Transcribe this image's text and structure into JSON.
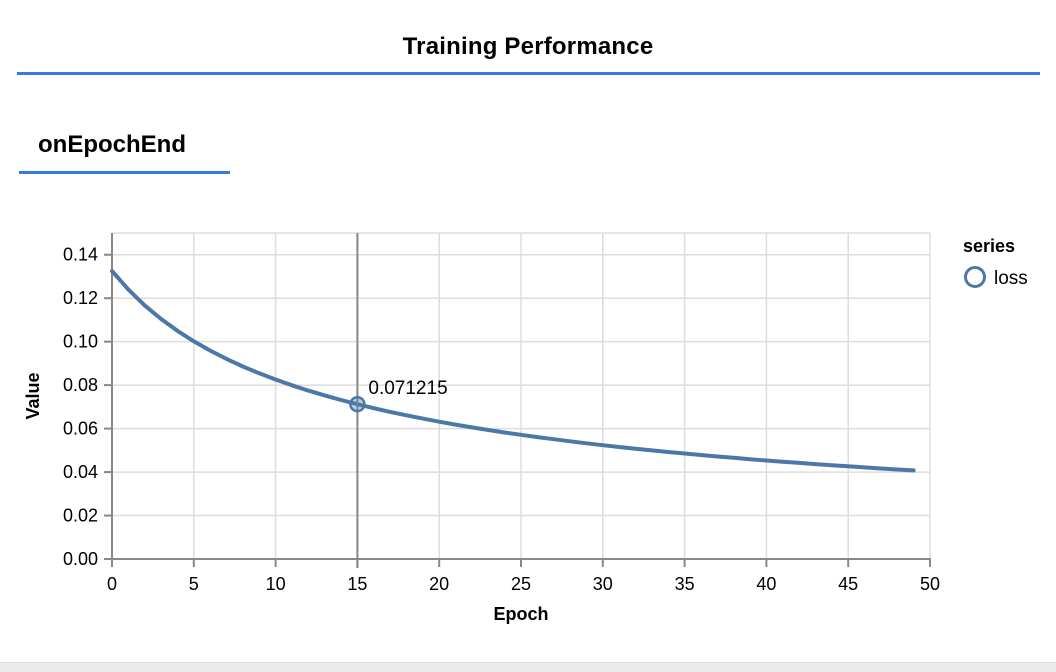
{
  "page": {
    "title": "Training Performance",
    "section_label": "onEpochEnd"
  },
  "colors": {
    "accent_rule": "#3b78e7",
    "series_line": "#4c78a8",
    "point_fill": "rgba(76,120,168,0.35)",
    "hover_rule": "#878787",
    "axis": "#888888",
    "grid": "#dddddd",
    "text": "#000000",
    "footer_strip": "#ebebeb"
  },
  "chart_data": {
    "type": "line",
    "title": "",
    "xlabel": "Epoch",
    "ylabel": "Value",
    "xlim": [
      0,
      50
    ],
    "ylim": [
      0,
      0.15
    ],
    "x_ticks": [
      0,
      5,
      10,
      15,
      20,
      25,
      30,
      35,
      40,
      45,
      50
    ],
    "y_ticks": [
      0,
      0.02,
      0.04,
      0.06,
      0.08,
      0.1,
      0.12,
      0.14
    ],
    "grid": true,
    "legend": {
      "position": "right",
      "title": "series",
      "entries": [
        {
          "label": "loss",
          "color": "#4c78a8",
          "marker": "open-circle"
        }
      ]
    },
    "series": [
      {
        "name": "loss",
        "x": [
          0,
          1,
          2,
          3,
          4,
          5,
          6,
          7,
          8,
          9,
          10,
          11,
          12,
          13,
          14,
          15,
          16,
          17,
          18,
          19,
          20,
          21,
          22,
          23,
          24,
          25,
          26,
          27,
          28,
          29,
          30,
          31,
          32,
          33,
          34,
          35,
          36,
          37,
          38,
          39,
          40,
          41,
          42,
          43,
          44,
          45,
          46,
          47,
          48,
          49
        ],
        "values": [
          0.1325,
          0.123953,
          0.116697,
          0.110444,
          0.104989,
          0.100178,
          0.095898,
          0.09206,
          0.088561,
          0.085447,
          0.082572,
          0.079935,
          0.077505,
          0.075256,
          0.073176,
          0.071215,
          0.069407,
          0.067705,
          0.066107,
          0.064603,
          0.063184,
          0.061843,
          0.060572,
          0.059367,
          0.058222,
          0.057132,
          0.056094,
          0.055102,
          0.054155,
          0.053249,
          0.052381,
          0.051548,
          0.050749,
          0.04998,
          0.049242,
          0.04853,
          0.047845,
          0.047184,
          0.046546,
          0.04593,
          0.045334,
          0.044758,
          0.044201,
          0.043661,
          0.043138,
          0.042631,
          0.042138,
          0.041661,
          0.041197,
          0.040746
        ]
      }
    ],
    "hover": {
      "x": 15,
      "y": 0.071215,
      "label": "0.071215"
    }
  }
}
